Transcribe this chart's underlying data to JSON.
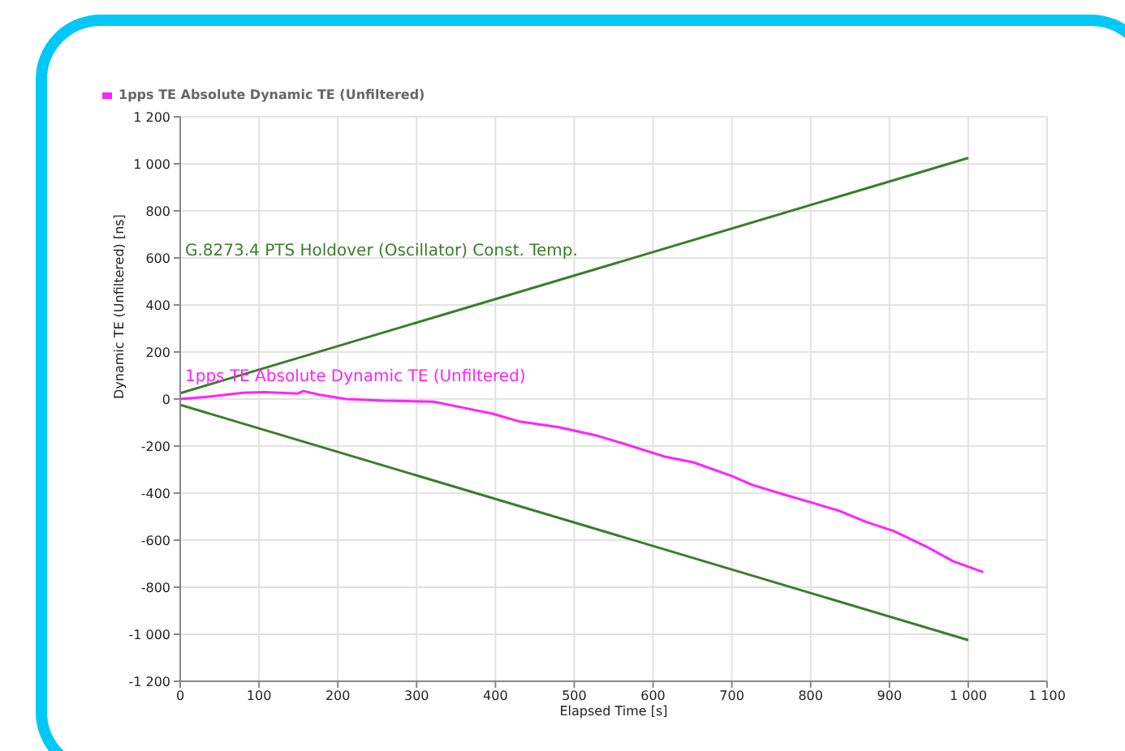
{
  "chart_data": {
    "type": "line",
    "xlabel": "Elapsed Time [s]",
    "ylabel": "Dynamic TE (Unfiltered) [ns]",
    "series": [
      {
        "name": "1pps TE Absolute Dynamic TE (Unfiltered)",
        "color": "#ff22ff",
        "x": [
          0,
          39,
          80,
          107,
          149,
          156,
          177,
          210,
          259,
          321,
          355,
          396,
          431,
          479,
          527,
          561,
          616,
          651,
          699,
          726,
          767,
          802,
          837,
          870,
          905,
          946,
          981,
          1019
        ],
        "values": [
          0,
          11,
          27,
          29,
          23,
          34,
          18,
          0,
          -7,
          -11,
          -34,
          -62,
          -96,
          -119,
          -154,
          -188,
          -246,
          -269,
          -326,
          -365,
          -407,
          -441,
          -476,
          -522,
          -561,
          -626,
          -690,
          -736
        ]
      },
      {
        "name": "G.8273.4 PTS Holdover (Oscillator) Const. Temp.",
        "color": "#3a7d2c",
        "x": [
          0,
          1000
        ],
        "values": [
          25,
          1025
        ]
      },
      {
        "color": "#3a7d2c",
        "x": [
          0,
          1000
        ],
        "values": [
          -25,
          -1025
        ]
      }
    ],
    "xlim": [
      0,
      1100
    ],
    "xticks": [
      0,
      100,
      200,
      300,
      400,
      500,
      600,
      700,
      800,
      900,
      {
        "value": 1000,
        "label": "1 000"
      },
      {
        "value": 1100,
        "label": "1 100"
      }
    ],
    "ylim": [
      -1200,
      1200
    ],
    "yticks": [
      {
        "value": -1200,
        "label": "-1 200"
      },
      {
        "value": -1000,
        "label": "-1 000"
      },
      -800,
      -600,
      -400,
      -200,
      0,
      200,
      400,
      600,
      800,
      {
        "value": 1000,
        "label": "1 000"
      },
      {
        "value": 1200,
        "label": "1 200"
      }
    ],
    "grid": true,
    "legend": "top left",
    "marker": "none",
    "line_style": "solid"
  }
}
